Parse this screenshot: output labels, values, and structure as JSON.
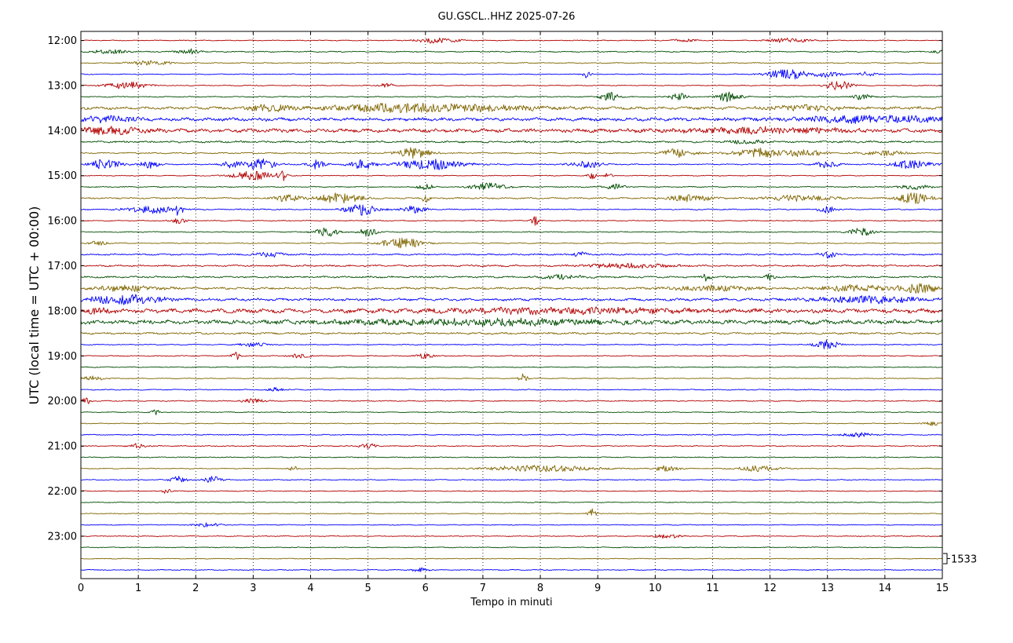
{
  "chart_data": {
    "type": "line",
    "title": "GU.GSCL..HHZ 2025-07-26",
    "xlabel": "Tempo in minuti",
    "ylabel": "UTC (local time = UTC + 00:00)",
    "xlim": [
      0,
      15
    ],
    "x_ticks": [
      "0",
      "1",
      "2",
      "3",
      "4",
      "5",
      "6",
      "7",
      "8",
      "9",
      "10",
      "11",
      "12",
      "13",
      "14",
      "15"
    ],
    "y_tick_labels": [
      "12:00",
      "13:00",
      "14:00",
      "15:00",
      "16:00",
      "17:00",
      "18:00",
      "19:00",
      "20:00",
      "21:00",
      "22:00",
      "23:00"
    ],
    "first_trace": "12:00",
    "trace_interval_minutes": 15,
    "trace_count": 48,
    "vertical_grid": "dotted at each minute",
    "scale_label": "1533",
    "trace_colors": [
      "#b30000",
      "#004d00",
      "#806600",
      "#0000ff"
    ],
    "trace_activity": [
      {
        "trace": "12:00",
        "level": 0.4,
        "events": [
          [
            6.2,
            0.5,
            1.5
          ],
          [
            12.3,
            0.5,
            1.2
          ],
          [
            10.5,
            0.3,
            0.8
          ]
        ]
      },
      {
        "trace": "12:15",
        "level": 0.5,
        "events": [
          [
            0.5,
            0.4,
            1.2
          ],
          [
            1.9,
            0.3,
            1.4
          ],
          [
            15.0,
            0.2,
            1.5
          ]
        ]
      },
      {
        "trace": "12:30",
        "level": 0.45,
        "events": [
          [
            1.2,
            0.5,
            1.2
          ]
        ]
      },
      {
        "trace": "12:45",
        "level": 0.4,
        "events": [
          [
            12.3,
            0.5,
            3.0
          ],
          [
            13.0,
            0.3,
            1.6
          ],
          [
            8.8,
            0.1,
            2.0
          ],
          [
            13.7,
            0.2,
            1.6
          ]
        ]
      },
      {
        "trace": "13:00",
        "level": 0.4,
        "events": [
          [
            0.8,
            0.5,
            2.0
          ],
          [
            13.2,
            0.3,
            3.0
          ],
          [
            5.3,
            0.2,
            1.2
          ]
        ]
      },
      {
        "trace": "13:15",
        "level": 0.5,
        "events": [
          [
            9.2,
            0.2,
            3.0
          ],
          [
            11.3,
            0.3,
            3.2
          ],
          [
            10.4,
            0.2,
            2.0
          ],
          [
            13.6,
            0.2,
            1.6
          ]
        ]
      },
      {
        "trace": "13:30",
        "level": 1.3,
        "events": [
          [
            5.5,
            1.5,
            2.2
          ],
          [
            3.3,
            0.5,
            1.6
          ],
          [
            7.0,
            1.5,
            1.4
          ],
          [
            12.6,
            0.8,
            1.4
          ]
        ]
      },
      {
        "trace": "13:45",
        "level": 1.5,
        "events": [
          [
            13.8,
            2.0,
            1.6
          ],
          [
            0.5,
            0.6,
            1.5
          ]
        ]
      },
      {
        "trace": "14:00",
        "level": 1.7,
        "events": [
          [
            0.5,
            0.8,
            1.5
          ],
          [
            12.0,
            2.0,
            1.2
          ]
        ]
      },
      {
        "trace": "14:15",
        "level": 0.9,
        "events": [
          [
            11.6,
            0.4,
            1.0
          ]
        ]
      },
      {
        "trace": "14:30",
        "level": 0.6,
        "events": [
          [
            5.8,
            0.4,
            3.0
          ],
          [
            10.4,
            0.4,
            2.4
          ],
          [
            11.8,
            0.6,
            2.6
          ],
          [
            12.6,
            0.4,
            2.2
          ],
          [
            14.0,
            0.5,
            1.4
          ]
        ]
      },
      {
        "trace": "14:45",
        "level": 0.5,
        "events": [
          [
            0.4,
            0.4,
            2.8
          ],
          [
            1.2,
            0.2,
            3.0
          ],
          [
            3.1,
            0.4,
            3.2
          ],
          [
            4.1,
            0.2,
            2.6
          ],
          [
            4.9,
            0.3,
            3.2
          ],
          [
            6.1,
            0.8,
            3.0
          ],
          [
            8.8,
            0.4,
            2.0
          ],
          [
            13.0,
            0.3,
            2.2
          ],
          [
            14.5,
            0.5,
            2.6
          ],
          [
            2.6,
            0.2,
            2.0
          ]
        ]
      },
      {
        "trace": "15:00",
        "level": 0.4,
        "events": [
          [
            3.0,
            0.5,
            2.5
          ],
          [
            3.5,
            0.1,
            4.0
          ],
          [
            8.9,
            0.1,
            2.5
          ],
          [
            9.2,
            0.1,
            2.0
          ]
        ]
      },
      {
        "trace": "15:15",
        "level": 0.5,
        "events": [
          [
            7.1,
            0.4,
            2.2
          ],
          [
            6.0,
            0.2,
            1.4
          ],
          [
            9.3,
            0.3,
            1.4
          ],
          [
            14.5,
            0.4,
            1.4
          ]
        ]
      },
      {
        "trace": "15:30",
        "level": 0.7,
        "events": [
          [
            3.6,
            0.3,
            2.0
          ],
          [
            4.5,
            0.5,
            3.0
          ],
          [
            6.0,
            0.1,
            2.0
          ],
          [
            10.6,
            0.5,
            2.0
          ],
          [
            12.5,
            0.8,
            1.8
          ],
          [
            14.5,
            0.4,
            3.0
          ]
        ]
      },
      {
        "trace": "15:45",
        "level": 0.5,
        "events": [
          [
            1.2,
            0.6,
            2.2
          ],
          [
            1.7,
            0.1,
            3.0
          ],
          [
            4.9,
            0.4,
            3.4
          ],
          [
            5.8,
            0.3,
            2.0
          ],
          [
            13.0,
            0.2,
            2.0
          ]
        ]
      },
      {
        "trace": "16:00",
        "level": 0.45,
        "events": [
          [
            7.9,
            0.1,
            3.0
          ],
          [
            1.7,
            0.2,
            1.4
          ]
        ]
      },
      {
        "trace": "16:15",
        "level": 0.45,
        "events": [
          [
            4.3,
            0.3,
            2.6
          ],
          [
            5.0,
            0.2,
            2.6
          ],
          [
            13.6,
            0.3,
            2.2
          ]
        ]
      },
      {
        "trace": "16:30",
        "level": 0.45,
        "events": [
          [
            5.6,
            0.5,
            3.0
          ],
          [
            0.3,
            0.2,
            1.4
          ]
        ]
      },
      {
        "trace": "16:45",
        "level": 0.7,
        "events": [
          [
            3.3,
            0.3,
            1.4
          ],
          [
            13.0,
            0.2,
            1.8
          ],
          [
            8.7,
            0.2,
            1.2
          ]
        ]
      },
      {
        "trace": "17:00",
        "level": 0.8,
        "events": [
          [
            9.5,
            1.0,
            1.2
          ]
        ]
      },
      {
        "trace": "17:15",
        "level": 0.8,
        "events": [
          [
            10.9,
            0.1,
            2.2
          ],
          [
            12.0,
            0.1,
            2.0
          ],
          [
            8.4,
            0.5,
            1.2
          ]
        ]
      },
      {
        "trace": "17:30",
        "level": 1.0,
        "events": [
          [
            14.6,
            0.5,
            2.6
          ],
          [
            13.5,
            0.8,
            1.6
          ],
          [
            0.8,
            0.8,
            1.4
          ],
          [
            11.0,
            1.0,
            1.3
          ]
        ]
      },
      {
        "trace": "17:45",
        "level": 1.2,
        "events": [
          [
            0.8,
            0.8,
            2.8
          ],
          [
            13.7,
            1.2,
            1.8
          ]
        ]
      },
      {
        "trace": "18:00",
        "level": 2.0,
        "events": [
          [
            8.5,
            2.5,
            1.2
          ],
          [
            0.3,
            0.3,
            1.5
          ]
        ]
      },
      {
        "trace": "18:15",
        "level": 2.0,
        "events": [
          [
            7.0,
            3.0,
            1.4
          ]
        ]
      },
      {
        "trace": "18:30",
        "level": 0.9,
        "events": []
      },
      {
        "trace": "18:45",
        "level": 0.45,
        "events": [
          [
            13.0,
            0.3,
            2.6
          ],
          [
            3.0,
            0.3,
            1.3
          ]
        ]
      },
      {
        "trace": "19:00",
        "level": 0.45,
        "events": [
          [
            2.7,
            0.1,
            2.2
          ],
          [
            6.0,
            0.2,
            1.5
          ],
          [
            3.8,
            0.3,
            1.2
          ]
        ]
      },
      {
        "trace": "19:15",
        "level": 0.4,
        "events": []
      },
      {
        "trace": "19:30",
        "level": 0.4,
        "events": [
          [
            7.7,
            0.1,
            3.0
          ],
          [
            0.2,
            0.3,
            1.2
          ]
        ]
      },
      {
        "trace": "19:45",
        "level": 0.45,
        "events": [
          [
            3.4,
            0.2,
            1.2
          ]
        ]
      },
      {
        "trace": "20:00",
        "level": 0.45,
        "events": [
          [
            0.1,
            0.1,
            2.0
          ],
          [
            3.0,
            0.3,
            1.2
          ]
        ]
      },
      {
        "trace": "20:15",
        "level": 0.4,
        "events": [
          [
            1.3,
            0.1,
            1.5
          ]
        ]
      },
      {
        "trace": "20:30",
        "level": 0.4,
        "events": [
          [
            14.8,
            0.2,
            1.2
          ]
        ]
      },
      {
        "trace": "20:45",
        "level": 0.45,
        "events": [
          [
            13.5,
            0.4,
            1.2
          ]
        ]
      },
      {
        "trace": "21:00",
        "level": 0.45,
        "events": [
          [
            1.0,
            0.2,
            1.4
          ],
          [
            5.0,
            0.2,
            1.4
          ]
        ]
      },
      {
        "trace": "21:15",
        "level": 0.45,
        "events": []
      },
      {
        "trace": "21:30",
        "level": 0.4,
        "events": [
          [
            8.0,
            1.3,
            1.8
          ],
          [
            3.7,
            0.1,
            1.6
          ],
          [
            11.8,
            0.5,
            1.6
          ],
          [
            10.2,
            0.3,
            1.6
          ]
        ]
      },
      {
        "trace": "21:45",
        "level": 0.4,
        "events": [
          [
            1.7,
            0.2,
            2.0
          ],
          [
            2.3,
            0.2,
            2.0
          ]
        ]
      },
      {
        "trace": "22:00",
        "level": 0.4,
        "events": [
          [
            1.5,
            0.1,
            1.5
          ]
        ]
      },
      {
        "trace": "22:15",
        "level": 0.4,
        "events": []
      },
      {
        "trace": "22:30",
        "level": 0.4,
        "events": [
          [
            8.9,
            0.1,
            3.5
          ]
        ]
      },
      {
        "trace": "22:45",
        "level": 0.4,
        "events": [
          [
            2.2,
            0.3,
            1.3
          ]
        ]
      },
      {
        "trace": "23:00",
        "level": 0.4,
        "events": [
          [
            10.2,
            0.3,
            1.3
          ]
        ]
      },
      {
        "trace": "23:15",
        "level": 0.4,
        "events": []
      },
      {
        "trace": "23:30",
        "level": 0.35,
        "events": []
      },
      {
        "trace": "23:45",
        "level": 0.4,
        "events": [
          [
            5.9,
            0.2,
            1.3
          ]
        ]
      }
    ]
  }
}
